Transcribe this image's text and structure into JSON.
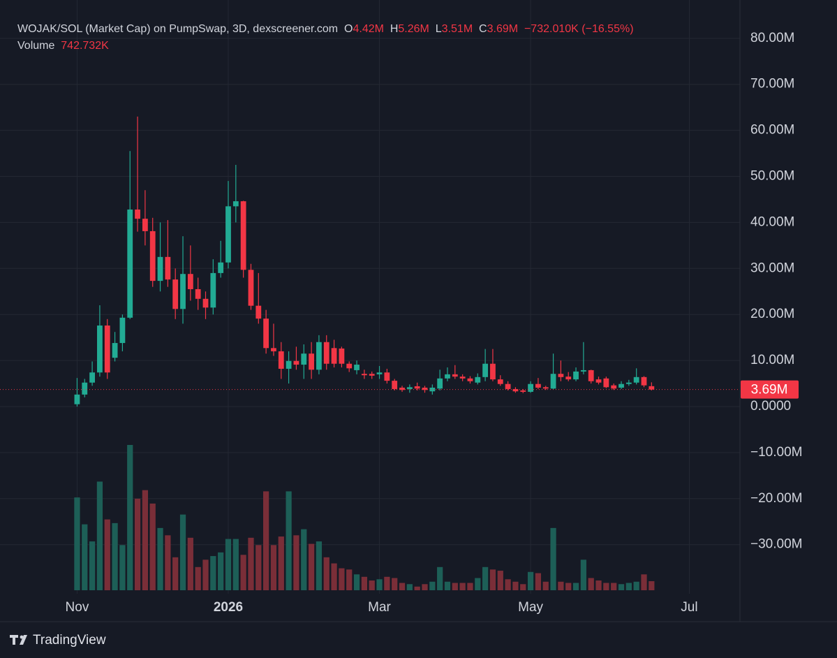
{
  "chart_data": {
    "type": "candlestick",
    "title": "WOJAK/SOL (Market Cap) on PumpSwap, 3D, dexscreener.com",
    "ohlc_header": [
      {
        "key": "O",
        "value": 4.42,
        "label": "4.42M"
      },
      {
        "key": "H",
        "value": 5.26,
        "label": "5.26M"
      },
      {
        "key": "L",
        "value": 3.51,
        "label": "3.51M"
      },
      {
        "key": "C",
        "value": 3.69,
        "label": "3.69M"
      }
    ],
    "change": {
      "value": -0.73201,
      "label": "−732.010K"
    },
    "change_pct": {
      "value": -16.55,
      "label": "(−16.55%)"
    },
    "volume_header": {
      "name": "Volume",
      "value": 0.742732,
      "label": "742.732K"
    },
    "categories": [
      null,
      null,
      null,
      null,
      null,
      null,
      null,
      null,
      null,
      null,
      null,
      null,
      null,
      null,
      null,
      null,
      null,
      null,
      null,
      null,
      null,
      null,
      null,
      null,
      null,
      null,
      null,
      null,
      null,
      null,
      null,
      null,
      null,
      null,
      null,
      null,
      null,
      null,
      null,
      null,
      null,
      null,
      null,
      null,
      null,
      null,
      null,
      null,
      null,
      null,
      null,
      null,
      null,
      null,
      null,
      null,
      null,
      null,
      null,
      null,
      null,
      null,
      null,
      null,
      null,
      null,
      null,
      null,
      null,
      null,
      null,
      null,
      null,
      null,
      null,
      null,
      null
    ],
    "open": [
      0.5,
      2.6,
      5.2,
      7.4,
      17.6,
      10.6,
      13.8,
      19.3,
      42.8,
      40.8,
      38.1,
      27.3,
      32.5,
      27.6,
      21.2,
      28.8,
      25.5,
      23.4,
      21.5,
      29,
      31.3,
      43.5,
      44.6,
      29.7,
      21.9,
      19.1,
      12.7,
      12,
      8.2,
      9.9,
      9.1,
      11.5,
      8,
      14,
      12.7,
      12.6,
      9.3,
      7.9,
      7.1,
      7.1,
      7,
      7.4,
      5.6,
      4.1,
      3.8,
      4.4,
      4.1,
      3.3,
      3.9,
      6.1,
      7,
      6.5,
      6.1,
      5.2,
      6.4,
      9.3,
      5.9,
      4.9,
      3.8,
      3.5,
      3.2,
      4.9,
      4.2,
      3.9,
      7.1,
      6.5,
      5.9,
      7.6,
      7.9,
      5.9,
      6.1,
      4.6,
      4.1,
      4.9,
      5.2,
      6.4,
      4.42
    ],
    "high": [
      6.2,
      6,
      9.8,
      22,
      19,
      16.2,
      20,
      55.5,
      63,
      47,
      41,
      40,
      40.5,
      30,
      37,
      35,
      28,
      25,
      32,
      36,
      49,
      52.5,
      44.7,
      31,
      29,
      21,
      18,
      14,
      12,
      13,
      13.5,
      14,
      15.5,
      15.5,
      14.5,
      13,
      9.8,
      10,
      8,
      7.6,
      8.8,
      8.2,
      6,
      4.5,
      4.8,
      5.2,
      4.5,
      4.8,
      8,
      8.5,
      9,
      7,
      6.6,
      7.2,
      12.5,
      12.5,
      6.8,
      5.5,
      4.2,
      3.8,
      5.5,
      6.2,
      4.5,
      11.5,
      10,
      7.5,
      8.5,
      14,
      8,
      6.5,
      6.5,
      5,
      5.5,
      5.8,
      8.3,
      6.6,
      5.26
    ],
    "low": [
      0,
      2,
      4.5,
      6.5,
      6,
      9.8,
      12,
      19,
      38,
      35,
      26,
      25,
      26,
      19,
      18,
      23,
      21,
      19,
      20,
      28,
      30,
      40,
      28,
      21,
      18,
      11.5,
      11,
      6,
      5,
      8,
      6,
      6,
      7,
      8,
      8.5,
      8.5,
      7.5,
      7,
      6,
      6,
      6,
      5,
      3.5,
      3.2,
      3,
      3.5,
      3,
      2.6,
      3.5,
      5.5,
      6,
      5.5,
      5,
      4.8,
      5.5,
      5.5,
      4.5,
      3.5,
      3,
      2.9,
      3,
      3.8,
      3.6,
      3.8,
      5.5,
      5.5,
      5.5,
      7,
      5,
      4.8,
      4,
      3.6,
      3.8,
      4.5,
      4.8,
      4.2,
      3.51
    ],
    "close": [
      2.6,
      5.2,
      7.4,
      17.6,
      7.4,
      13.8,
      19.3,
      42.8,
      40.8,
      38.1,
      27.3,
      32.5,
      27.6,
      21.2,
      28.8,
      25.5,
      23.4,
      21.5,
      29,
      31.3,
      43.5,
      44.6,
      29.7,
      21.9,
      19.1,
      12.7,
      12,
      8.2,
      9.9,
      9.1,
      11.5,
      8,
      14,
      9.3,
      9.3,
      9.3,
      8.3,
      9.1,
      6.8,
      6.7,
      7.4,
      5.6,
      3.8,
      3.6,
      4.2,
      3.9,
      3.6,
      4.1,
      6.1,
      7,
      6.5,
      6.1,
      5.5,
      6.4,
      9.3,
      5.9,
      4.9,
      3.8,
      3.3,
      3.2,
      4.9,
      4.1,
      3.9,
      7.1,
      6.4,
      5.9,
      7.6,
      7.9,
      5.5,
      5.2,
      4.2,
      3.9,
      4.9,
      5.2,
      6.4,
      4.6,
      3.69
    ],
    "volume": [
      7.6,
      5.4,
      4,
      8.9,
      5.8,
      5.5,
      3.7,
      11.9,
      7.5,
      8.2,
      7.1,
      5.1,
      4.5,
      2.7,
      6.2,
      4.3,
      1.9,
      2.5,
      2.8,
      3.1,
      4.2,
      4.2,
      2.9,
      4.3,
      3.7,
      8.1,
      3.7,
      4.4,
      8.1,
      4.5,
      5,
      3.8,
      4,
      2.7,
      2.2,
      1.8,
      1.7,
      1.3,
      1.1,
      0.8,
      0.9,
      1.1,
      1,
      0.6,
      0.5,
      0.3,
      0.5,
      0.7,
      1.9,
      0.7,
      0.6,
      0.6,
      0.6,
      1,
      1.9,
      1.7,
      1.6,
      0.9,
      0.7,
      0.5,
      1.5,
      1.4,
      0.7,
      5.1,
      0.7,
      0.6,
      0.6,
      2.5,
      1,
      0.8,
      0.6,
      0.6,
      0.5,
      0.6,
      0.7,
      1.3,
      0.742732
    ],
    "colors": {
      "up": "#22ab94",
      "down": "#f23645",
      "volume_up": "#1d5f57",
      "volume_down": "#7a2e38"
    },
    "ylim": [
      -40.67,
      88.32
    ],
    "yticks": [
      {
        "value": 80,
        "label": "80.00M"
      },
      {
        "value": 70,
        "label": "70.00M"
      },
      {
        "value": 60,
        "label": "60.00M"
      },
      {
        "value": 50,
        "label": "50.00M"
      },
      {
        "value": 40,
        "label": "40.00M"
      },
      {
        "value": 30,
        "label": "30.00M"
      },
      {
        "value": 20,
        "label": "20.00M"
      },
      {
        "value": 10,
        "label": "10.00M"
      },
      {
        "value": 0,
        "label": "0.0000"
      },
      {
        "value": -10,
        "label": "−10.00M"
      },
      {
        "value": -20,
        "label": "−20.00M"
      },
      {
        "value": -30,
        "label": "−30.00M"
      }
    ],
    "xlim": [
      -10.2,
      87.7
    ],
    "xticks": [
      {
        "value": 0,
        "label": "Nov"
      },
      {
        "value": 20,
        "label": "2026",
        "style": "bold"
      },
      {
        "value": 40,
        "label": "Mar"
      },
      {
        "value": 60,
        "label": "May"
      },
      {
        "value": 81,
        "label": "Jul"
      }
    ],
    "grid": true
  },
  "footer": {
    "brand": "TradingView"
  }
}
